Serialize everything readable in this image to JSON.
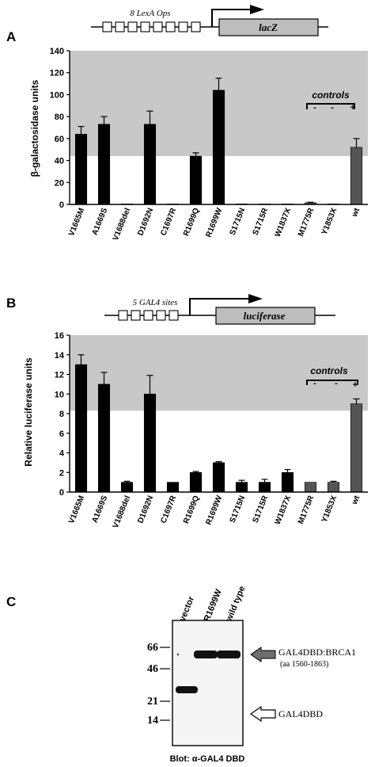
{
  "figure": {
    "panels": [
      "A",
      "B",
      "C"
    ]
  },
  "panel_a": {
    "construct": {
      "label": "8 LexA Ops",
      "gene": "lacZ"
    },
    "controls_label": "controls",
    "control_signs": [
      "-",
      "-",
      "+"
    ]
  },
  "panel_b": {
    "construct": {
      "label": "5 GAL4 sites",
      "gene": "luciferase"
    },
    "controls_label": "controls",
    "control_signs": [
      "-",
      "-",
      "+"
    ]
  },
  "panel_c": {
    "lanes": [
      "vector",
      "R1699W",
      "wild type"
    ],
    "mw_markers": [
      "66",
      "46",
      "21",
      "14"
    ],
    "band_labels": {
      "top": "GAL4DBD:BRCA1",
      "top_sub": "(aa 1560-1863)",
      "bottom": "GAL4DBD"
    },
    "blot_label": "Blot: α-GAL4 DBD"
  },
  "chart_data": [
    {
      "type": "bar",
      "panel": "A",
      "ylabel": "β-galactosidase units",
      "ylim": [
        0,
        140
      ],
      "yticks": [
        "0",
        "20",
        "40",
        "60",
        "80",
        "100",
        "120",
        "140"
      ],
      "categories": [
        "V1665M",
        "A1669S",
        "V1688del",
        "D1692N",
        "C1697R",
        "R1699Q",
        "R1699W",
        "S1715N",
        "S1715R",
        "W1837X",
        "M1775R",
        "Y1853X",
        "wt"
      ],
      "values": [
        64,
        73,
        0.5,
        73,
        0.5,
        44,
        104,
        0.5,
        0.5,
        0.5,
        1.5,
        0.5,
        52
      ],
      "errors": [
        7,
        7,
        0,
        12,
        0,
        3,
        11,
        0,
        0,
        0,
        0.5,
        0,
        8
      ],
      "threshold": 44,
      "bar_colors": [
        "#000000",
        "#000000",
        "#000000",
        "#000000",
        "#000000",
        "#000000",
        "#000000",
        "#000000",
        "#000000",
        "#000000",
        "#555555",
        "#555555",
        "#555555"
      ],
      "shade_color": "#c8c8c8"
    },
    {
      "type": "bar",
      "panel": "B",
      "ylabel": "Relative luciferase units",
      "ylim": [
        0,
        16
      ],
      "yticks": [
        "0",
        "2",
        "4",
        "6",
        "8",
        "10",
        "12",
        "14",
        "16"
      ],
      "categories": [
        "V1665M",
        "A1669S",
        "V1688del",
        "D1692N",
        "C1697R",
        "R1699Q",
        "R1699W",
        "S1715N",
        "S1715R",
        "W1837X",
        "M1775R",
        "Y1853X",
        "wt"
      ],
      "values": [
        13,
        11,
        1,
        10,
        1,
        2,
        3,
        1,
        1,
        2,
        1,
        1,
        9
      ],
      "errors": [
        1,
        1.2,
        0.1,
        1.9,
        0,
        0.1,
        0.1,
        0.2,
        0.3,
        0.3,
        0,
        0.1,
        0.5
      ],
      "threshold": 8.3,
      "bar_colors": [
        "#000000",
        "#000000",
        "#000000",
        "#000000",
        "#000000",
        "#000000",
        "#000000",
        "#000000",
        "#000000",
        "#000000",
        "#555555",
        "#555555",
        "#555555"
      ],
      "shade_color": "#c8c8c8"
    }
  ]
}
